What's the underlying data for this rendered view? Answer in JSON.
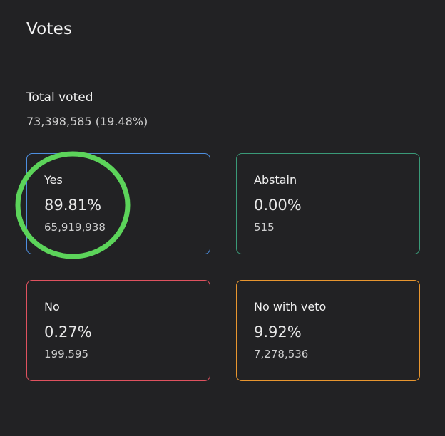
{
  "title": "Votes",
  "total": {
    "label": "Total voted",
    "value": "73,398,585 (19.48%)"
  },
  "options": [
    {
      "label": "Yes",
      "percent": "89.81%",
      "count": "65,919,938",
      "color": "#4d8fe0"
    },
    {
      "label": "Abstain",
      "percent": "0.00%",
      "count": "515",
      "color": "#3a9a78"
    },
    {
      "label": "No",
      "percent": "0.27%",
      "count": "199,595",
      "color": "#e0525f"
    },
    {
      "label": "No with veto",
      "percent": "9.92%",
      "count": "7,278,536",
      "color": "#e8962f"
    }
  ],
  "highlight_color": "#5cd45a"
}
